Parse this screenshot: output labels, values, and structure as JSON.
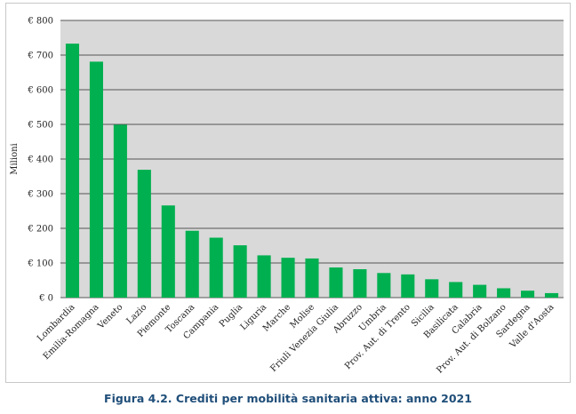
{
  "chart_data": {
    "type": "bar",
    "ylabel": "Milioni",
    "ylim": [
      0,
      800
    ],
    "yticks": [
      0,
      100,
      200,
      300,
      400,
      500,
      600,
      700,
      800
    ],
    "ytick_labels": [
      "€ 0",
      "€ 100",
      "€ 200",
      "€ 300",
      "€ 400",
      "€ 500",
      "€ 600",
      "€ 700",
      "€ 800"
    ],
    "grid": true,
    "bar_color": "#00b050",
    "plot_background": "#d9d9d9",
    "categories": [
      "Lombardia",
      "Emilia-Romagna",
      "Veneto",
      "Lazio",
      "Piemonte",
      "Toscana",
      "Campania",
      "Puglia",
      "Liguria",
      "Marche",
      "Molise",
      "Friuli Venezia Giulia",
      "Abruzzo",
      "Umbria",
      "Prov. Aut. di Trento",
      "Sicilia",
      "Basilicata",
      "Calabria",
      "Prov. Aut. di Bolzano",
      "Sardegna",
      "Valle d'Aosta"
    ],
    "values": [
      733,
      681,
      499,
      369,
      266,
      193,
      173,
      151,
      122,
      115,
      113,
      87,
      82,
      71,
      67,
      53,
      45,
      37,
      27,
      20,
      13
    ]
  },
  "caption": "Figura 4.2. Crediti per mobilità sanitaria attiva: anno 2021"
}
